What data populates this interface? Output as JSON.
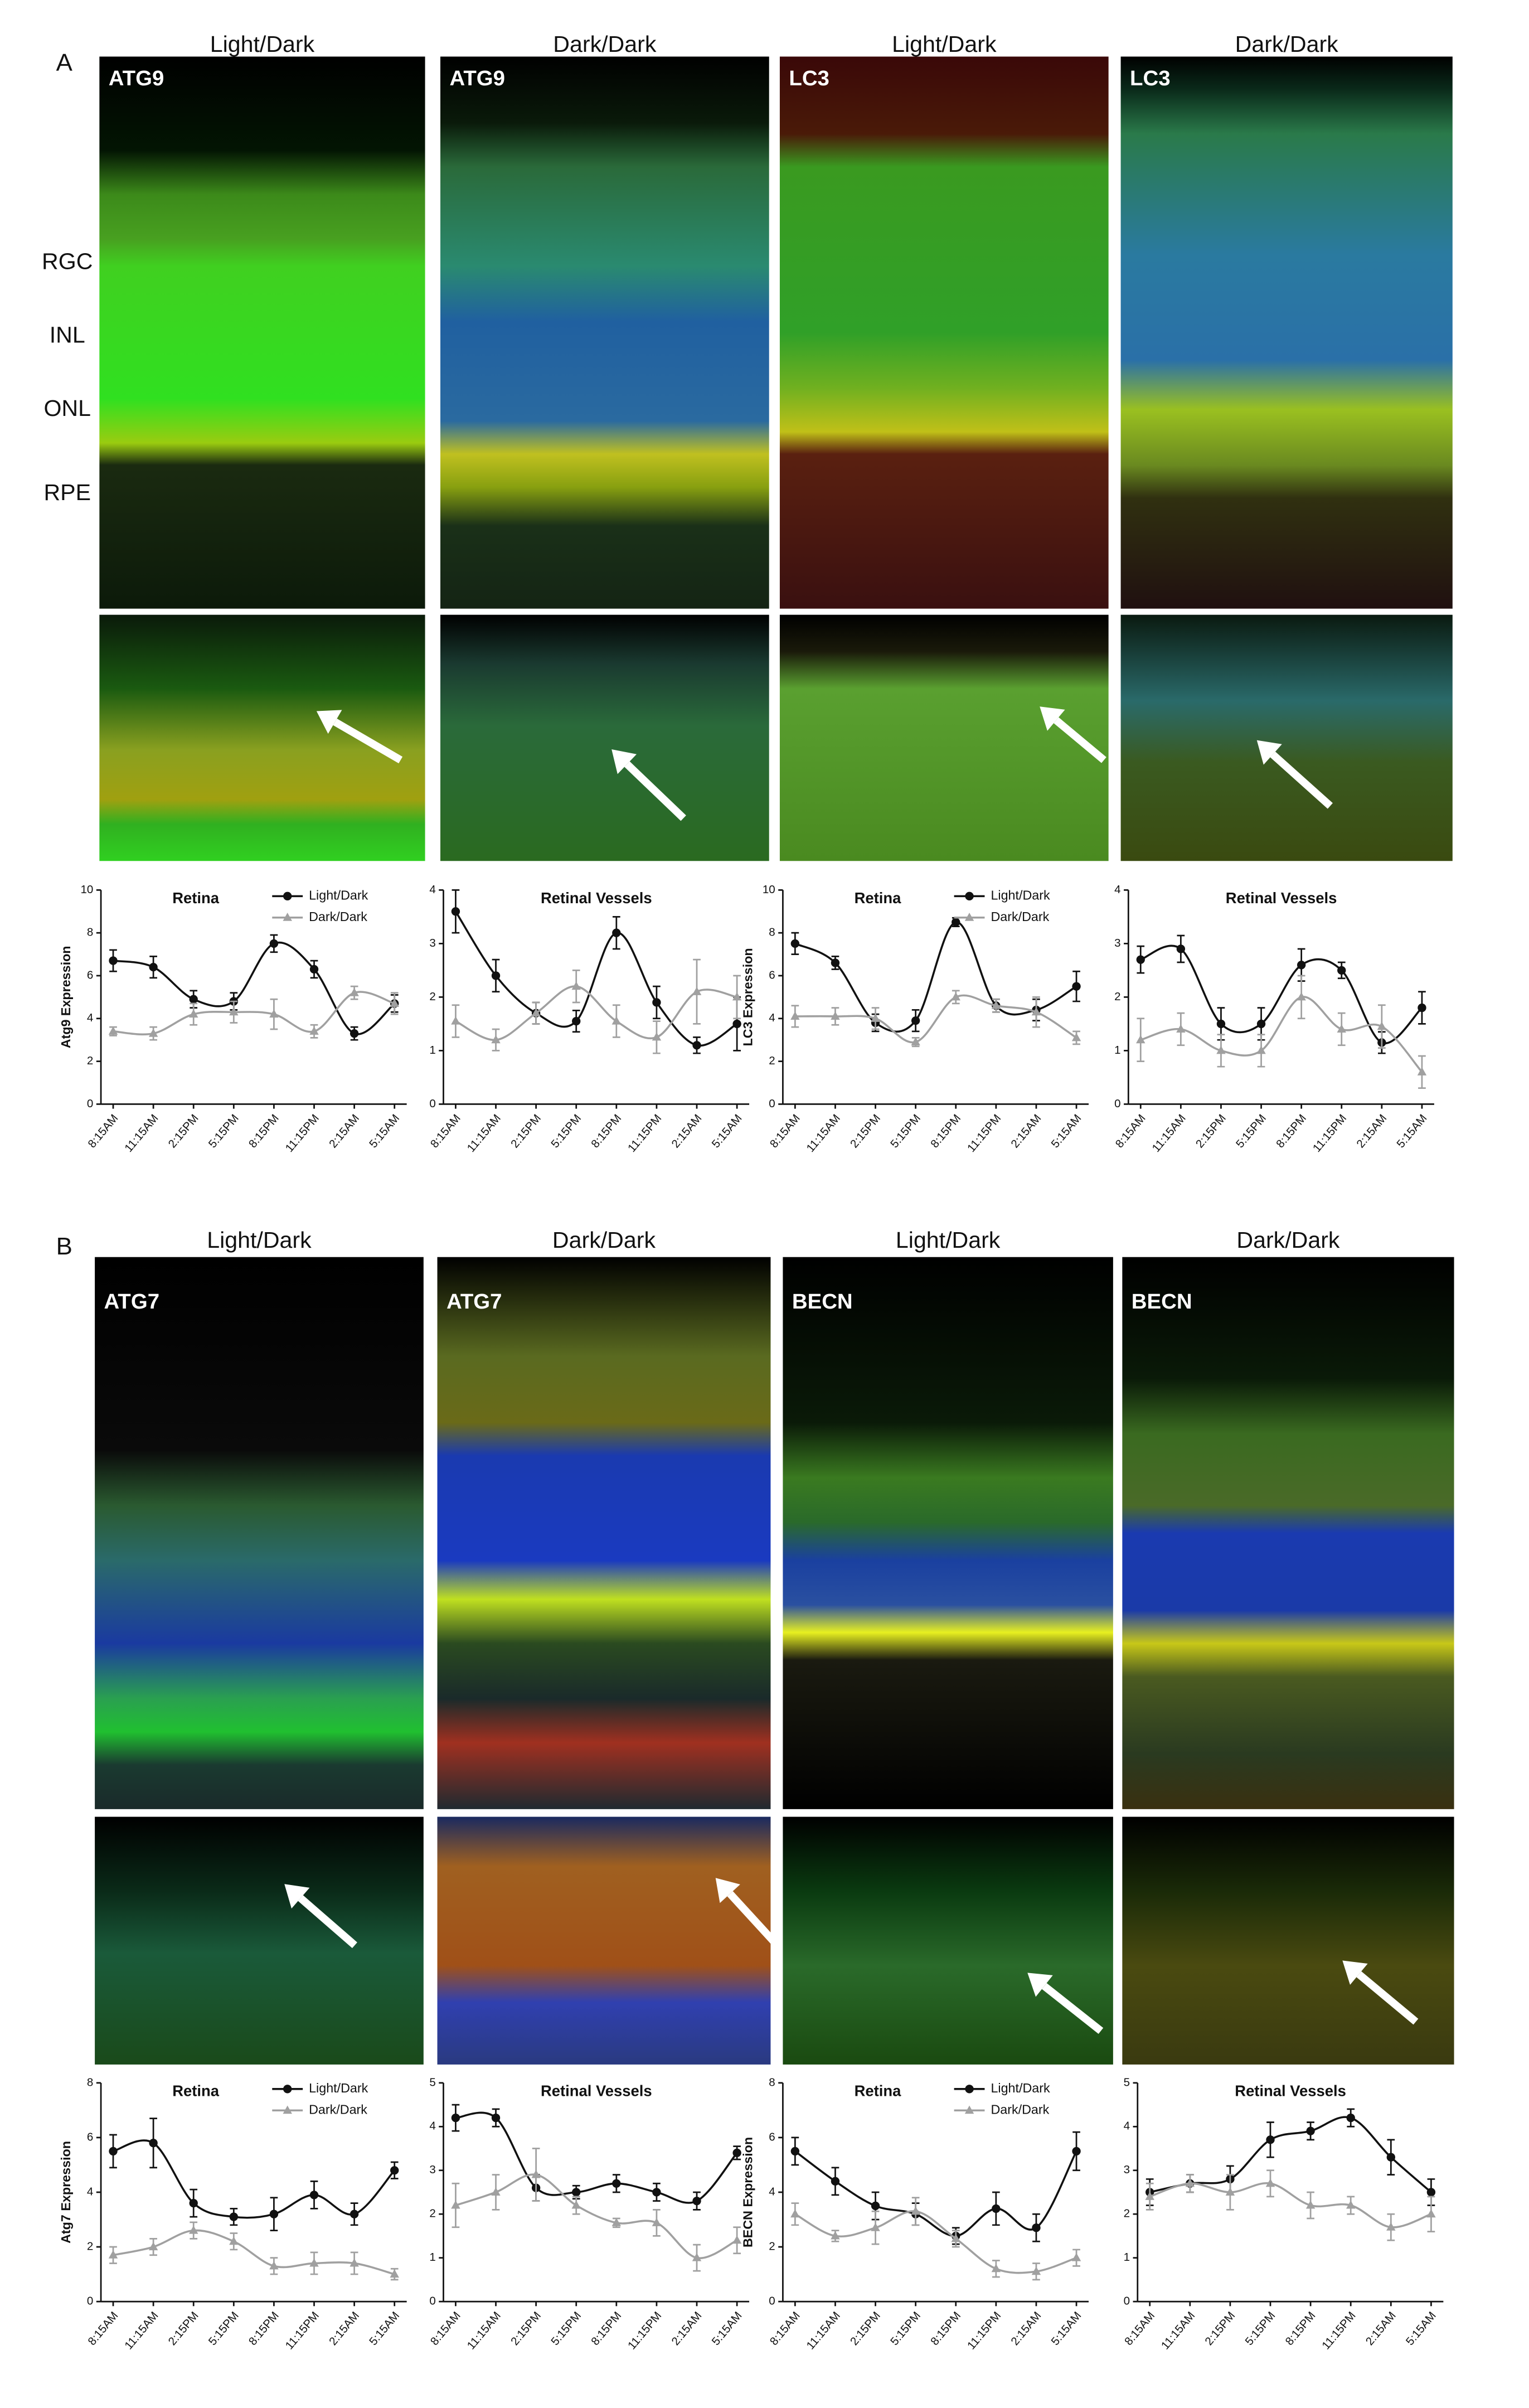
{
  "panels": [
    {
      "label": "A",
      "columns": [
        {
          "condition": "Light/Dark",
          "stain": "ATG9"
        },
        {
          "condition": "Dark/Dark",
          "stain": "ATG9"
        },
        {
          "condition": "Light/Dark",
          "stain": "LC3"
        },
        {
          "condition": "Dark/Dark",
          "stain": "LC3"
        }
      ]
    },
    {
      "label": "B",
      "columns": [
        {
          "condition": "Light/Dark",
          "stain": "ATG7"
        },
        {
          "condition": "Dark/Dark",
          "stain": "ATG7"
        },
        {
          "condition": "Light/Dark",
          "stain": "BECN"
        },
        {
          "condition": "Dark/Dark",
          "stain": "BECN"
        }
      ]
    }
  ],
  "layers": [
    "RGC",
    "INL",
    "ONL",
    "RPE"
  ],
  "chart_data": [
    {
      "type": "line",
      "title": "Retina",
      "ylabel": "Atg9 Expression",
      "categories": [
        "8:15AM",
        "11:15AM",
        "2:15PM",
        "5:15PM",
        "8:15PM",
        "11:15PM",
        "2:15AM",
        "5:15AM"
      ],
      "ylim": [
        0,
        10
      ],
      "yticks": [
        0,
        2,
        4,
        6,
        8,
        10
      ],
      "series": [
        {
          "name": "Light/Dark",
          "color": "#111111",
          "marker": "circle",
          "values": [
            6.7,
            6.4,
            4.9,
            4.8,
            7.5,
            6.3,
            3.3,
            4.7
          ],
          "errors": [
            0.5,
            0.5,
            0.4,
            0.4,
            0.4,
            0.4,
            0.3,
            0.4
          ]
        },
        {
          "name": "Dark/Dark",
          "color": "#a0a0a0",
          "marker": "triangle",
          "values": [
            3.4,
            3.3,
            4.2,
            4.3,
            4.2,
            3.4,
            5.2,
            4.7
          ],
          "errors": [
            0.2,
            0.3,
            0.5,
            0.5,
            0.7,
            0.3,
            0.3,
            0.5
          ]
        }
      ]
    },
    {
      "type": "line",
      "title": "Retinal Vessels",
      "categories": [
        "8:15AM",
        "11:15AM",
        "2:15PM",
        "5:15PM",
        "8:15PM",
        "11:15PM",
        "2:15AM",
        "5:15AM"
      ],
      "ylim": [
        0,
        4
      ],
      "yticks": [
        0,
        1,
        2,
        3,
        4
      ],
      "series": [
        {
          "color": "#111111",
          "marker": "circle",
          "values": [
            3.6,
            2.4,
            1.7,
            1.55,
            3.2,
            1.9,
            1.1,
            1.5
          ],
          "errors": [
            0.4,
            0.3,
            0.2,
            0.2,
            0.3,
            0.3,
            0.15,
            0.5
          ]
        },
        {
          "color": "#a0a0a0",
          "marker": "triangle",
          "values": [
            1.55,
            1.2,
            1.7,
            2.2,
            1.55,
            1.25,
            2.1,
            2.0
          ],
          "errors": [
            0.3,
            0.2,
            0.2,
            0.3,
            0.3,
            0.3,
            0.6,
            0.4
          ]
        }
      ]
    },
    {
      "type": "line",
      "title": "Retina",
      "ylabel": "LC3 Expression",
      "categories": [
        "8:15AM",
        "11:15AM",
        "2:15PM",
        "5:15PM",
        "8:15PM",
        "11:15PM",
        "2:15AM",
        "5:15AM"
      ],
      "ylim": [
        0,
        10
      ],
      "yticks": [
        0,
        2,
        4,
        6,
        8,
        10
      ],
      "series": [
        {
          "name": "Light/Dark",
          "color": "#111111",
          "marker": "circle",
          "values": [
            7.5,
            6.6,
            3.8,
            3.9,
            8.5,
            4.6,
            4.4,
            5.5
          ],
          "errors": [
            0.5,
            0.3,
            0.4,
            0.5,
            0.2,
            0.3,
            0.5,
            0.7
          ]
        },
        {
          "name": "Dark/Dark",
          "color": "#a0a0a0",
          "marker": "triangle",
          "values": [
            4.1,
            4.1,
            4.0,
            2.9,
            5.0,
            4.6,
            4.3,
            3.1
          ],
          "errors": [
            0.5,
            0.4,
            0.5,
            0.2,
            0.3,
            0.3,
            0.7,
            0.3
          ]
        }
      ]
    },
    {
      "type": "line",
      "title": "Retinal Vessels",
      "categories": [
        "8:15AM",
        "11:15AM",
        "2:15PM",
        "5:15PM",
        "8:15PM",
        "11:15PM",
        "2:15AM",
        "5:15AM"
      ],
      "ylim": [
        0,
        4
      ],
      "yticks": [
        0,
        1,
        2,
        3,
        4
      ],
      "series": [
        {
          "color": "#111111",
          "marker": "circle",
          "values": [
            2.7,
            2.9,
            1.5,
            1.5,
            2.6,
            2.5,
            1.15,
            1.8
          ],
          "errors": [
            0.25,
            0.25,
            0.3,
            0.3,
            0.3,
            0.15,
            0.2,
            0.3
          ]
        },
        {
          "color": "#a0a0a0",
          "marker": "triangle",
          "values": [
            1.2,
            1.4,
            1.0,
            1.0,
            2.0,
            1.4,
            1.45,
            0.6
          ],
          "errors": [
            0.4,
            0.3,
            0.3,
            0.3,
            0.4,
            0.3,
            0.4,
            0.3
          ]
        }
      ]
    },
    {
      "type": "line",
      "title": "Retina",
      "ylabel": "Atg7 Expression",
      "categories": [
        "8:15AM",
        "11:15AM",
        "2:15PM",
        "5:15PM",
        "8:15PM",
        "11:15PM",
        "2:15AM",
        "5:15AM"
      ],
      "ylim": [
        0,
        8
      ],
      "yticks": [
        0,
        2,
        4,
        6,
        8
      ],
      "series": [
        {
          "name": "Light/Dark",
          "color": "#111111",
          "marker": "circle",
          "values": [
            5.5,
            5.8,
            3.6,
            3.1,
            3.2,
            3.9,
            3.2,
            4.8
          ],
          "errors": [
            0.6,
            0.9,
            0.5,
            0.3,
            0.6,
            0.5,
            0.4,
            0.3
          ]
        },
        {
          "name": "Dark/Dark",
          "color": "#a0a0a0",
          "marker": "triangle",
          "values": [
            1.7,
            2.0,
            2.6,
            2.2,
            1.3,
            1.4,
            1.4,
            1.0
          ],
          "errors": [
            0.3,
            0.3,
            0.3,
            0.3,
            0.3,
            0.4,
            0.4,
            0.2
          ]
        }
      ]
    },
    {
      "type": "line",
      "title": "Retinal Vessels",
      "categories": [
        "8:15AM",
        "11:15AM",
        "2:15PM",
        "5:15PM",
        "8:15PM",
        "11:15PM",
        "2:15AM",
        "5:15AM"
      ],
      "ylim": [
        0,
        5
      ],
      "yticks": [
        0,
        1,
        2,
        3,
        4,
        5
      ],
      "series": [
        {
          "color": "#111111",
          "marker": "circle",
          "values": [
            4.2,
            4.2,
            2.6,
            2.5,
            2.7,
            2.5,
            2.3,
            3.4
          ],
          "errors": [
            0.3,
            0.2,
            0.3,
            0.15,
            0.2,
            0.2,
            0.2,
            0.15
          ]
        },
        {
          "color": "#a0a0a0",
          "marker": "triangle",
          "values": [
            2.2,
            2.5,
            2.9,
            2.2,
            1.8,
            1.8,
            1.0,
            1.4
          ],
          "errors": [
            0.5,
            0.4,
            0.6,
            0.2,
            0.1,
            0.3,
            0.3,
            0.3
          ]
        }
      ]
    },
    {
      "type": "line",
      "title": "Retina",
      "ylabel": "BECN Expression",
      "categories": [
        "8:15AM",
        "11:15AM",
        "2:15PM",
        "5:15PM",
        "8:15PM",
        "11:15PM",
        "2:15AM",
        "5:15AM"
      ],
      "ylim": [
        0,
        8
      ],
      "yticks": [
        0,
        2,
        4,
        6,
        8
      ],
      "series": [
        {
          "name": "Light/Dark",
          "color": "#111111",
          "marker": "circle",
          "values": [
            5.5,
            4.4,
            3.5,
            3.2,
            2.4,
            3.4,
            2.7,
            5.5
          ],
          "errors": [
            0.5,
            0.5,
            0.5,
            0.4,
            0.3,
            0.6,
            0.5,
            0.7
          ]
        },
        {
          "name": "Dark/Dark",
          "color": "#a0a0a0",
          "marker": "triangle",
          "values": [
            3.2,
            2.4,
            2.7,
            3.3,
            2.3,
            1.2,
            1.1,
            1.6
          ],
          "errors": [
            0.4,
            0.2,
            0.6,
            0.5,
            0.3,
            0.3,
            0.3,
            0.3
          ]
        }
      ]
    },
    {
      "type": "line",
      "title": "Retinal Vessels",
      "categories": [
        "8:15AM",
        "11:15AM",
        "2:15PM",
        "5:15PM",
        "8:15PM",
        "11:15PM",
        "2:15AM",
        "5:15AM"
      ],
      "ylim": [
        0,
        5
      ],
      "yticks": [
        0,
        1,
        2,
        3,
        4,
        5
      ],
      "series": [
        {
          "color": "#111111",
          "marker": "circle",
          "values": [
            2.5,
            2.7,
            2.8,
            3.7,
            3.9,
            4.2,
            3.3,
            2.5
          ],
          "errors": [
            0.3,
            0.2,
            0.3,
            0.4,
            0.2,
            0.2,
            0.4,
            0.3
          ]
        },
        {
          "color": "#a0a0a0",
          "marker": "triangle",
          "values": [
            2.4,
            2.7,
            2.5,
            2.7,
            2.2,
            2.2,
            1.7,
            2.0
          ],
          "errors": [
            0.3,
            0.2,
            0.4,
            0.3,
            0.3,
            0.2,
            0.3,
            0.4
          ]
        }
      ]
    }
  ]
}
